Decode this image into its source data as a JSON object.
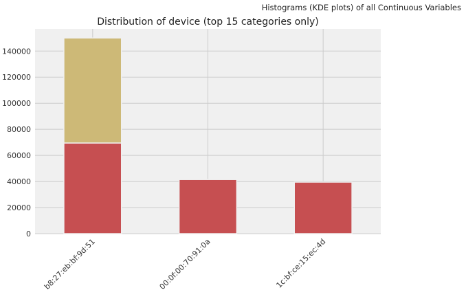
{
  "figure": {
    "suptitle": "Histograms (KDE plots) of all Continuous Variables"
  },
  "colors": {
    "background": "#f0f0f0",
    "grid": "#cbcbcb",
    "series_bottom": "#c64f51",
    "series_top": "#cdb977"
  },
  "chart_data": {
    "type": "bar",
    "stacked": true,
    "title": "Distribution of device (top 15 categories only)",
    "xlabel": "",
    "ylabel": "",
    "categories": [
      "b8:27:eb:bf:9d:51",
      "00:0f:00:70:91:0a",
      "1c:bf:ce:15:ec:4d"
    ],
    "series": [
      {
        "values": [
          69500,
          41500,
          39500
        ],
        "color": "#c64f51"
      },
      {
        "values": [
          80500,
          0,
          0
        ],
        "color": "#cdb977"
      }
    ],
    "ylim": [
      0,
      157000
    ],
    "yticks": [
      0,
      20000,
      40000,
      60000,
      80000,
      100000,
      120000,
      140000
    ],
    "grid": true,
    "legend": "none"
  }
}
